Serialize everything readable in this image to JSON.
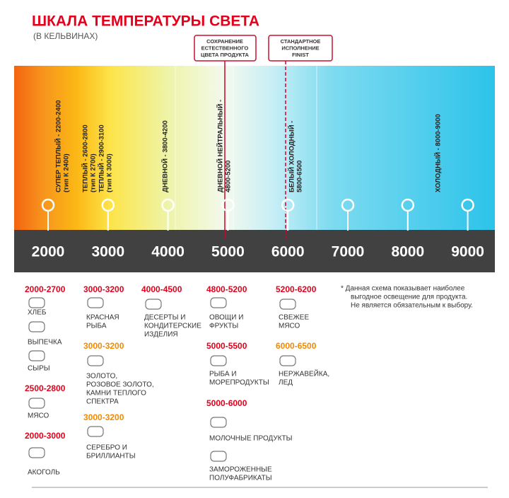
{
  "header": {
    "title": "ШКАЛА ТЕМПЕРАТУРЫ СВЕТА",
    "subtitle": "(В КЕЛЬВИНАХ)"
  },
  "callouts": [
    {
      "lines": [
        "СОХРАНЕНИЕ",
        "ЕСТЕСТВЕННОГО",
        "ЦВЕТА ПРОДУКТА"
      ]
    },
    {
      "lines": [
        "СТАНДАРТНОЕ",
        "ИСПОЛНЕНИЕ",
        "FINIST"
      ]
    }
  ],
  "band_labels": [
    {
      "lines": [
        "СУПЕР ТЕПЛЫЙ - 2200-2400",
        "(тип К 2400)"
      ]
    },
    {
      "lines": [
        "ТЕПЛЫЙ - 2600-2800",
        "(тип К 2700)"
      ]
    },
    {
      "lines": [
        "ТЕПЛЫЙ - 2900-3100",
        "(тип К 3000)"
      ]
    },
    {
      "lines": [
        "ДНЕВНОЙ - 3800-4200"
      ]
    },
    {
      "lines": [
        "ДНЕВНОЙ НЕЙТРАЛЬНЫЙ -",
        "4800-5200"
      ]
    },
    {
      "lines": [
        "БЕЛЫЙ ХОЛОДНЫЙ -",
        "5800-6500"
      ]
    },
    {
      "lines": [
        "ХОЛОДНЫЙ - 8000-9000"
      ]
    }
  ],
  "scale": [
    2000,
    3000,
    4000,
    5000,
    6000,
    7000,
    8000,
    9000
  ],
  "groups": [
    {
      "range": "2000-2700",
      "color": "#e3001b",
      "items": [
        {
          "lines": [
            "ХЛЕБ"
          ]
        },
        {
          "lines": [
            "ВЫПЕЧКА"
          ]
        },
        {
          "lines": [
            "СЫРЫ"
          ]
        }
      ]
    },
    {
      "range": "2500-2800",
      "color": "#e3001b",
      "items": [
        {
          "lines": [
            "МЯСО"
          ]
        }
      ]
    },
    {
      "range": "2000-3000",
      "color": "#e3001b",
      "items": [
        {
          "lines": [
            "АКОГОЛЬ"
          ]
        }
      ]
    },
    {
      "range": "3000-3200",
      "color": "#e3001b",
      "items": [
        {
          "lines": [
            "КРАСНАЯ",
            "РЫБА"
          ]
        }
      ]
    },
    {
      "range": "3000-3200",
      "color": "#f08a00",
      "items": [
        {
          "lines": [
            "ЗОЛОТО,",
            "РОЗОВОЕ ЗОЛОТО,",
            "КАМНИ ТЕПЛОГО",
            "СПЕКТРА"
          ]
        }
      ]
    },
    {
      "range": "3000-3200",
      "color": "#f08a00",
      "items": [
        {
          "lines": [
            "СЕРЕБРО И",
            "БРИЛЛИАНТЫ"
          ]
        }
      ]
    },
    {
      "range": "4000-4500",
      "color": "#e3001b",
      "items": [
        {
          "lines": [
            "ДЕСЕРТЫ И",
            "КОНДИТЕРСКИЕ",
            "ИЗДЕЛИЯ"
          ]
        }
      ]
    },
    {
      "range": "4800-5200",
      "color": "#e3001b",
      "items": [
        {
          "lines": [
            "ОВОЩИ И",
            "ФРУКТЫ"
          ]
        }
      ]
    },
    {
      "range": "5000-5500",
      "color": "#e3001b",
      "items": [
        {
          "lines": [
            "РЫБА И",
            "МОРЕПРОДУКТЫ"
          ]
        }
      ]
    },
    {
      "range": "5000-6000",
      "color": "#e3001b",
      "items": [
        {
          "lines": [
            "МОЛОЧНЫЕ ПРОДУКТЫ"
          ]
        },
        {
          "lines": [
            "ЗАМОРОЖЕННЫЕ",
            "ПОЛУФАБРИКАТЫ"
          ]
        }
      ]
    },
    {
      "range": "5200-6200",
      "color": "#e3001b",
      "items": [
        {
          "lines": [
            "СВЕЖЕЕ",
            "МЯСО"
          ]
        }
      ]
    },
    {
      "range": "6000-6500",
      "color": "#f08a00",
      "items": [
        {
          "lines": [
            "НЕРЖАВЕЙКА,",
            "ЛЕД"
          ]
        }
      ]
    }
  ],
  "note": {
    "lines": [
      "*  Данная схема показывает наиболее",
      "выгодное освещение для продукта.",
      "Не является обязательным к выбору."
    ]
  }
}
